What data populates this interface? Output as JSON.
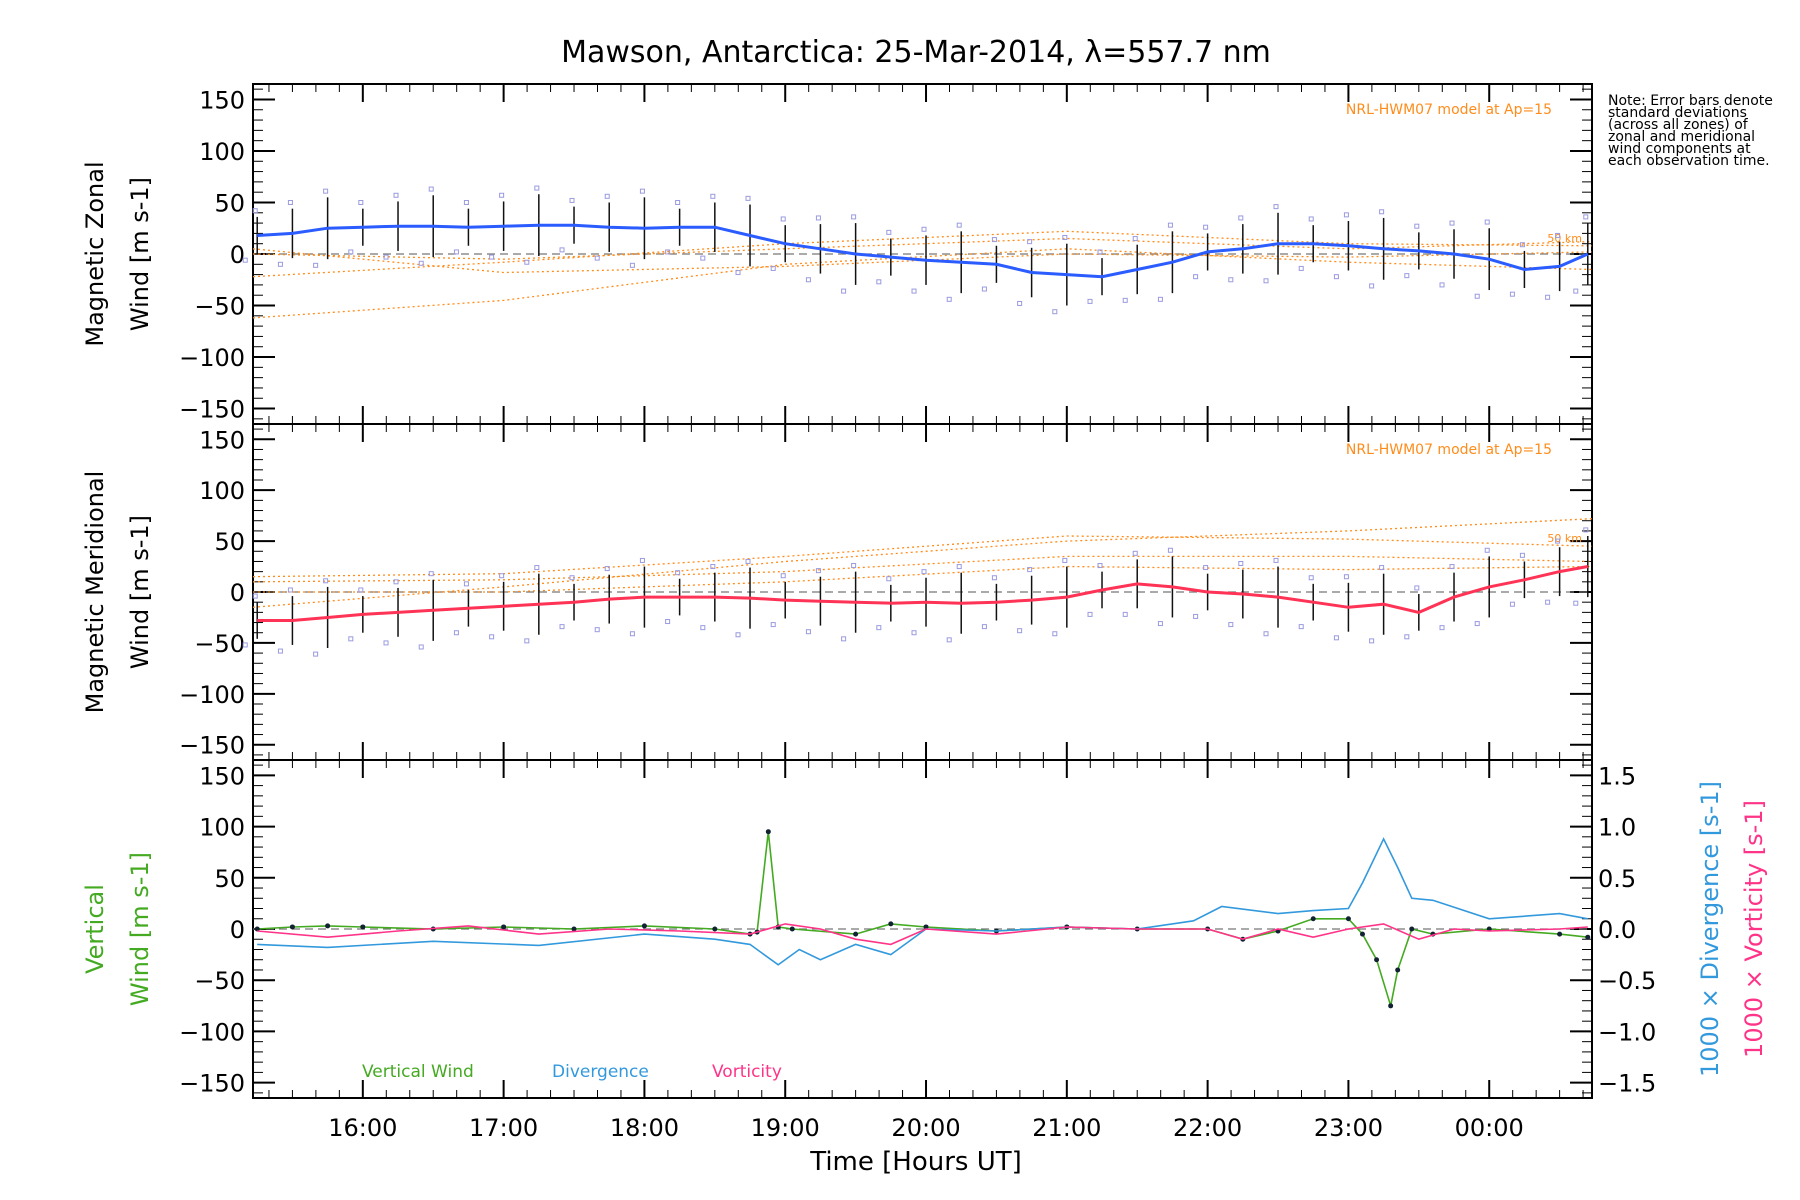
{
  "title": "Mawson, Antarctica: 25-Mar-2014, λ=557.7 nm",
  "note": "Note: Error bars denote standard deviations (across all zones) of zonal and meridional wind components at each observation time.",
  "x_axis": {
    "label": "Time [Hours UT]",
    "ticks": [
      "16:00",
      "17:00",
      "18:00",
      "19:00",
      "20:00",
      "21:00",
      "22:00",
      "23:00",
      "00:00"
    ],
    "tick_hours": [
      16,
      17,
      18,
      19,
      20,
      21,
      22,
      23,
      24
    ],
    "range_hours": [
      15.22,
      24.73
    ]
  },
  "colors": {
    "zonal": "#2b5cff",
    "meridional": "#ff3355",
    "vertical": "#44aa22",
    "divergence": "#3399dd",
    "vorticity": "#ff3388",
    "model": "#ff8c1a",
    "zone_points": "#9a9ae0"
  },
  "chart_data": [
    {
      "type": "line",
      "panel": "zonal",
      "ylabel_line1": "Magnetic Zonal",
      "ylabel_line2": "Wind [m s-1]",
      "ylim": [
        -165,
        165
      ],
      "yticks": [
        -150,
        -100,
        -50,
        0,
        50,
        100,
        150
      ],
      "model_label": "NRL-HWM07 model at Ap=15",
      "model_altitude_label": "50 km",
      "series": [
        {
          "name": "Zonal wind",
          "x": [
            15.25,
            15.5,
            15.75,
            16.0,
            16.25,
            16.5,
            16.75,
            17.0,
            17.25,
            17.5,
            17.75,
            18.0,
            18.25,
            18.5,
            18.75,
            19.0,
            19.25,
            19.5,
            19.75,
            20.0,
            20.25,
            20.5,
            20.75,
            21.0,
            21.25,
            21.5,
            21.75,
            22.0,
            22.25,
            22.5,
            22.75,
            23.0,
            23.25,
            23.5,
            23.75,
            24.0,
            24.25,
            24.5,
            24.7
          ],
          "values": [
            18,
            20,
            25,
            26,
            27,
            27,
            26,
            27,
            28,
            28,
            26,
            25,
            26,
            26,
            18,
            10,
            5,
            0,
            -3,
            -6,
            -8,
            -10,
            -18,
            -20,
            -22,
            -15,
            -8,
            2,
            5,
            10,
            10,
            8,
            5,
            3,
            0,
            -5,
            -15,
            -12,
            0
          ]
        }
      ],
      "model_curves": [
        {
          "x": [
            15.22,
            17.0,
            19.0,
            21.0,
            23.0,
            24.73
          ],
          "values": [
            -62,
            -45,
            -10,
            5,
            -8,
            -15
          ]
        },
        {
          "x": [
            15.22,
            17.0,
            19.0,
            21.0,
            23.0,
            24.73
          ],
          "values": [
            -22,
            -8,
            10,
            22,
            10,
            8
          ]
        },
        {
          "x": [
            15.22,
            17.0,
            19.0,
            21.0,
            23.0,
            24.73
          ],
          "values": [
            0,
            -5,
            5,
            15,
            5,
            12
          ]
        },
        {
          "x": [
            15.22,
            17.0,
            19.0,
            21.0,
            23.0,
            24.73
          ],
          "values": [
            5,
            -18,
            -12,
            0,
            -3,
            2
          ]
        }
      ]
    },
    {
      "type": "line",
      "panel": "meridional",
      "ylabel_line1": "Magnetic Meridional",
      "ylabel_line2": "Wind [m s-1]",
      "ylim": [
        -165,
        165
      ],
      "yticks": [
        -150,
        -100,
        -50,
        0,
        50,
        100,
        150
      ],
      "model_label": "NRL-HWM07 model at Ap=15",
      "model_altitude_label": "50 km",
      "series": [
        {
          "name": "Meridional wind",
          "x": [
            15.25,
            15.5,
            15.75,
            16.0,
            16.25,
            16.5,
            16.75,
            17.0,
            17.25,
            17.5,
            17.75,
            18.0,
            18.25,
            18.5,
            18.75,
            19.0,
            19.25,
            19.5,
            19.75,
            20.0,
            20.25,
            20.5,
            20.75,
            21.0,
            21.25,
            21.5,
            21.75,
            22.0,
            22.25,
            22.5,
            22.75,
            23.0,
            23.25,
            23.5,
            23.75,
            24.0,
            24.25,
            24.5,
            24.7
          ],
          "values": [
            -28,
            -28,
            -25,
            -22,
            -20,
            -18,
            -16,
            -14,
            -12,
            -10,
            -7,
            -5,
            -5,
            -5,
            -6,
            -8,
            -9,
            -10,
            -11,
            -10,
            -11,
            -10,
            -8,
            -5,
            2,
            8,
            5,
            0,
            -2,
            -5,
            -10,
            -15,
            -12,
            -20,
            -5,
            5,
            12,
            20,
            25
          ]
        }
      ],
      "model_curves": [
        {
          "x": [
            15.22,
            17.0,
            19.0,
            21.0,
            23.0,
            24.73
          ],
          "values": [
            -15,
            5,
            30,
            50,
            60,
            72
          ]
        },
        {
          "x": [
            15.22,
            17.0,
            19.0,
            21.0,
            23.0,
            24.73
          ],
          "values": [
            15,
            18,
            35,
            55,
            52,
            45
          ]
        },
        {
          "x": [
            15.22,
            17.0,
            19.0,
            21.0,
            23.0,
            24.73
          ],
          "values": [
            10,
            12,
            20,
            35,
            35,
            30
          ]
        },
        {
          "x": [
            15.22,
            17.0,
            19.0,
            21.0,
            23.0,
            24.73
          ],
          "values": [
            0,
            0,
            10,
            25,
            22,
            25
          ]
        }
      ]
    },
    {
      "type": "line",
      "panel": "vertical",
      "ylabel_line1": "Vertical",
      "ylabel_line2": "Wind [m s-1]",
      "ylim": [
        -165,
        165
      ],
      "yticks": [
        -150,
        -100,
        -50,
        0,
        50,
        100,
        150
      ],
      "y2label_div": "1000 × Divergence [s-1]",
      "y2label_vor": "1000 × Vorticity [s-1]",
      "y2lim": [
        -1.65,
        1.65
      ],
      "y2ticks": [
        -1.5,
        -1.0,
        -0.5,
        0.0,
        0.5,
        1.0,
        1.5
      ],
      "legend": [
        "Vertical Wind",
        "Divergence",
        "Vorticity"
      ],
      "series": [
        {
          "name": "Vertical Wind",
          "x": [
            15.25,
            15.5,
            15.75,
            16.0,
            16.5,
            17.0,
            17.5,
            18.0,
            18.5,
            18.75,
            18.8,
            18.88,
            18.95,
            19.05,
            19.5,
            19.75,
            20.0,
            20.5,
            21.0,
            21.5,
            22.0,
            22.25,
            22.5,
            22.75,
            23.0,
            23.1,
            23.2,
            23.3,
            23.35,
            23.45,
            23.6,
            24.0,
            24.5,
            24.7
          ],
          "values": [
            0,
            2,
            3,
            2,
            0,
            2,
            0,
            3,
            0,
            -5,
            -3,
            95,
            2,
            0,
            -5,
            5,
            2,
            -2,
            2,
            0,
            0,
            -10,
            -2,
            10,
            10,
            -5,
            -30,
            -75,
            -40,
            0,
            -5,
            0,
            -5,
            -8
          ]
        },
        {
          "name": "Divergence",
          "x": [
            15.25,
            15.75,
            16.5,
            17.25,
            18.0,
            18.5,
            18.75,
            18.95,
            19.1,
            19.25,
            19.5,
            19.75,
            20.0,
            20.5,
            21.0,
            21.5,
            21.9,
            22.1,
            22.5,
            22.75,
            23.0,
            23.1,
            23.25,
            23.35,
            23.45,
            23.6,
            24.0,
            24.5,
            24.7
          ],
          "values": [
            -0.15,
            -0.18,
            -0.12,
            -0.16,
            -0.05,
            -0.1,
            -0.15,
            -0.35,
            -0.2,
            -0.3,
            -0.15,
            -0.25,
            0.0,
            -0.02,
            0.02,
            0.0,
            0.08,
            0.22,
            0.15,
            0.18,
            0.2,
            0.45,
            0.88,
            0.6,
            0.3,
            0.28,
            0.1,
            0.15,
            0.1
          ]
        },
        {
          "name": "Vorticity",
          "x": [
            15.25,
            15.75,
            16.25,
            16.75,
            17.25,
            17.75,
            18.25,
            18.75,
            19.0,
            19.25,
            19.5,
            19.75,
            20.0,
            20.5,
            21.0,
            21.5,
            22.0,
            22.25,
            22.5,
            22.75,
            23.0,
            23.25,
            23.5,
            23.75,
            24.0,
            24.5,
            24.7
          ],
          "values": [
            -0.02,
            -0.08,
            -0.02,
            0.03,
            -0.05,
            0.0,
            -0.02,
            -0.05,
            0.05,
            0.0,
            -0.1,
            -0.15,
            0.0,
            -0.05,
            0.02,
            0.0,
            0.0,
            -0.1,
            0.0,
            -0.08,
            0.0,
            0.05,
            -0.1,
            0.0,
            -0.02,
            0.0,
            0.02
          ]
        }
      ]
    }
  ]
}
